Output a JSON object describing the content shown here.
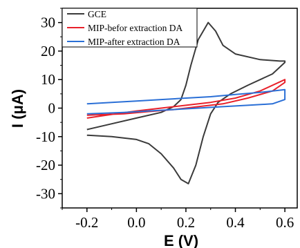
{
  "chart_data": {
    "type": "line",
    "xlabel": "E (V)",
    "ylabel": "I (μA)",
    "xlim": [
      -0.3,
      0.65
    ],
    "ylim": [
      -35,
      35
    ],
    "x_ticks": [
      "-0.2",
      "0.0",
      "0.2",
      "0.4",
      "0.6"
    ],
    "y_ticks": [
      "30",
      "20",
      "10",
      "0",
      "-10",
      "-20",
      "-30"
    ],
    "legend_position": "top-left",
    "series": [
      {
        "name": "GCE",
        "color": "#3a3a3a",
        "points": [
          [
            -0.2,
            -7.5
          ],
          [
            -0.1,
            -5.5
          ],
          [
            0.0,
            -3.5
          ],
          [
            0.1,
            -1.5
          ],
          [
            0.15,
            0.5
          ],
          [
            0.18,
            3
          ],
          [
            0.2,
            8
          ],
          [
            0.22,
            15
          ],
          [
            0.25,
            24
          ],
          [
            0.29,
            30
          ],
          [
            0.32,
            27
          ],
          [
            0.35,
            22
          ],
          [
            0.4,
            19
          ],
          [
            0.5,
            17
          ],
          [
            0.58,
            16.5
          ],
          [
            0.6,
            16.5
          ],
          [
            0.6,
            16
          ],
          [
            0.55,
            12
          ],
          [
            0.45,
            8
          ],
          [
            0.38,
            5
          ],
          [
            0.33,
            2
          ],
          [
            0.3,
            -2
          ],
          [
            0.27,
            -10
          ],
          [
            0.24,
            -20
          ],
          [
            0.21,
            -26.5
          ],
          [
            0.18,
            -25
          ],
          [
            0.15,
            -21
          ],
          [
            0.1,
            -16
          ],
          [
            0.05,
            -12.5
          ],
          [
            0.0,
            -11
          ],
          [
            -0.1,
            -10
          ],
          [
            -0.2,
            -9.5
          ]
        ]
      },
      {
        "name": "MIP-befor extraction DA",
        "color": "#e8202a",
        "points": [
          [
            -0.2,
            -3.5
          ],
          [
            -0.1,
            -2.2
          ],
          [
            0.0,
            -1.0
          ],
          [
            0.1,
            0.0
          ],
          [
            0.2,
            1.0
          ],
          [
            0.3,
            2.0
          ],
          [
            0.4,
            3.5
          ],
          [
            0.5,
            6.0
          ],
          [
            0.6,
            10.0
          ],
          [
            0.6,
            9.0
          ],
          [
            0.55,
            6.0
          ],
          [
            0.45,
            3.5
          ],
          [
            0.35,
            1.5
          ],
          [
            0.25,
            0.5
          ],
          [
            0.15,
            -0.5
          ],
          [
            0.05,
            -1.2
          ],
          [
            -0.05,
            -2.0
          ],
          [
            -0.2,
            -2.5
          ]
        ]
      },
      {
        "name": "MIP-after extraction DA",
        "color": "#2a6fd6",
        "points": [
          [
            -0.2,
            1.5
          ],
          [
            -0.1,
            2.0
          ],
          [
            0.0,
            2.5
          ],
          [
            0.1,
            3.0
          ],
          [
            0.2,
            3.5
          ],
          [
            0.3,
            4.0
          ],
          [
            0.4,
            4.8
          ],
          [
            0.5,
            5.5
          ],
          [
            0.6,
            6.5
          ],
          [
            0.6,
            3.0
          ],
          [
            0.55,
            1.5
          ],
          [
            0.45,
            1.0
          ],
          [
            0.35,
            0.5
          ],
          [
            0.25,
            0.0
          ],
          [
            0.15,
            -0.5
          ],
          [
            0.05,
            -1.0
          ],
          [
            -0.05,
            -1.5
          ],
          [
            -0.2,
            -2.0
          ]
        ]
      }
    ]
  }
}
